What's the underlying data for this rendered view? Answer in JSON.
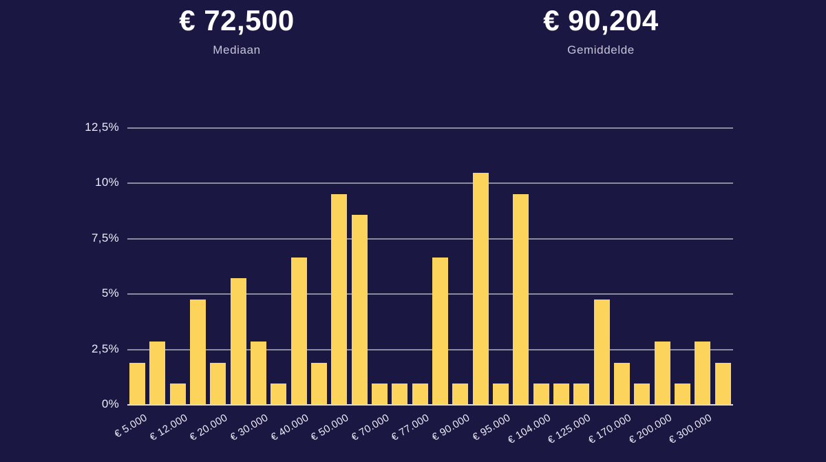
{
  "header": {
    "stats": [
      {
        "value": "€ 72,500",
        "label": "Mediaan"
      },
      {
        "value": "€ 90,204",
        "label": "Gemiddelde"
      }
    ]
  },
  "chart_data": {
    "type": "bar",
    "categories": [
      "€ 5.000",
      "",
      "€ 12.000",
      "",
      "€ 20.000",
      "",
      "€ 30.000",
      "",
      "€ 40.000",
      "",
      "€ 50.000",
      "",
      "€ 70.000",
      "",
      "€ 77.000",
      "",
      "€ 90.000",
      "",
      "€ 95.000",
      "",
      "€ 104.000",
      "",
      "€ 125.000",
      "",
      "€ 170.000",
      "",
      "€ 200.000",
      "",
      "€ 300.000",
      ""
    ],
    "values": [
      1.9,
      2.86,
      0.95,
      4.76,
      1.9,
      5.71,
      2.86,
      0.95,
      6.67,
      1.9,
      9.52,
      8.57,
      0.95,
      0.95,
      0.95,
      6.67,
      0.95,
      10.48,
      0.95,
      9.52,
      0.95,
      0.95,
      0.95,
      4.76,
      1.9,
      0.95,
      2.86,
      0.95,
      2.86,
      1.9
    ],
    "ylim": [
      0,
      12.5
    ],
    "yticks": [
      {
        "value": 0,
        "label": "0%"
      },
      {
        "value": 2.5,
        "label": "2,5%"
      },
      {
        "value": 5,
        "label": "5%"
      },
      {
        "value": 7.5,
        "label": "7,5%"
      },
      {
        "value": 10,
        "label": "10%"
      },
      {
        "value": 12.5,
        "label": "12,5%"
      }
    ],
    "grid": true,
    "legend": false,
    "x_label_rotation_deg": -31
  },
  "colors": {
    "background": "#1b1743",
    "bar": "#fcd45c",
    "gridline": "#8d8b9e",
    "axis_line": "#d9d8e3",
    "stat_value": "#ffffff",
    "stat_label": "#c6c4d6",
    "tick_label": "#edecf5"
  }
}
